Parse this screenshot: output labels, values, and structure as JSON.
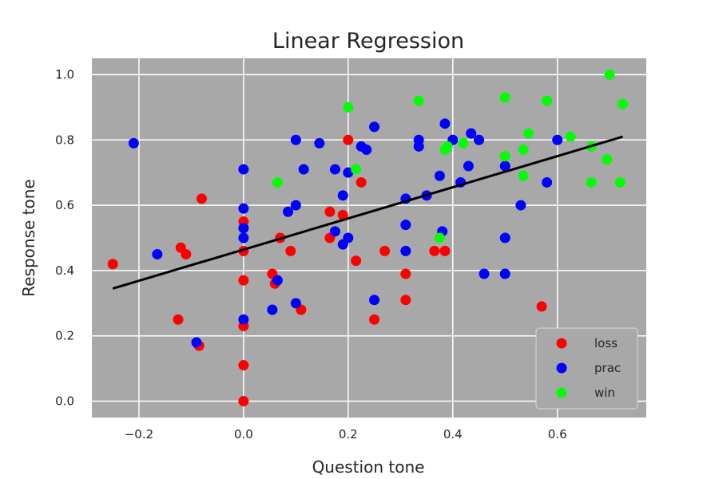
{
  "chart_data": {
    "type": "scatter",
    "title": "Linear Regression",
    "xlabel": "Question tone",
    "ylabel": "Response tone",
    "xlim": [
      -0.29,
      0.77
    ],
    "ylim": [
      -0.05,
      1.05
    ],
    "xticks": [
      -0.2,
      0.0,
      0.2,
      0.4,
      0.6
    ],
    "xtick_labels": [
      "−0.2",
      "0.0",
      "0.2",
      "0.4",
      "0.6"
    ],
    "yticks": [
      0.0,
      0.2,
      0.4,
      0.6,
      0.8,
      1.0
    ],
    "ytick_labels": [
      "0.0",
      "0.2",
      "0.4",
      "0.6",
      "0.8",
      "1.0"
    ],
    "grid": true,
    "background_color": "#a8a8a8",
    "grid_color": "#ffffff",
    "legend_position": "lower-right",
    "series": [
      {
        "name": "loss",
        "color": "#ff0000",
        "points": [
          [
            -0.25,
            0.42
          ],
          [
            -0.12,
            0.47
          ],
          [
            -0.11,
            0.45
          ],
          [
            -0.125,
            0.25
          ],
          [
            -0.08,
            0.62
          ],
          [
            -0.085,
            0.17
          ],
          [
            0.0,
            0.55
          ],
          [
            0.0,
            0.46
          ],
          [
            0.0,
            0.37
          ],
          [
            0.0,
            0.23
          ],
          [
            0.0,
            0.11
          ],
          [
            0.0,
            0.0
          ],
          [
            0.055,
            0.39
          ],
          [
            0.06,
            0.36
          ],
          [
            0.07,
            0.5
          ],
          [
            0.09,
            0.46
          ],
          [
            0.11,
            0.28
          ],
          [
            0.165,
            0.58
          ],
          [
            0.165,
            0.5
          ],
          [
            0.19,
            0.57
          ],
          [
            0.2,
            0.8
          ],
          [
            0.215,
            0.43
          ],
          [
            0.225,
            0.67
          ],
          [
            0.25,
            0.25
          ],
          [
            0.27,
            0.46
          ],
          [
            0.31,
            0.39
          ],
          [
            0.31,
            0.31
          ],
          [
            0.365,
            0.46
          ],
          [
            0.385,
            0.46
          ],
          [
            0.57,
            0.29
          ]
        ]
      },
      {
        "name": "prac",
        "color": "#0000ff",
        "points": [
          [
            -0.21,
            0.79
          ],
          [
            -0.165,
            0.45
          ],
          [
            -0.09,
            0.18
          ],
          [
            0.0,
            0.71
          ],
          [
            0.0,
            0.59
          ],
          [
            0.0,
            0.53
          ],
          [
            0.0,
            0.5
          ],
          [
            0.0,
            0.25
          ],
          [
            0.055,
            0.28
          ],
          [
            0.065,
            0.37
          ],
          [
            0.085,
            0.58
          ],
          [
            0.1,
            0.8
          ],
          [
            0.1,
            0.6
          ],
          [
            0.1,
            0.3
          ],
          [
            0.115,
            0.71
          ],
          [
            0.145,
            0.79
          ],
          [
            0.175,
            0.71
          ],
          [
            0.175,
            0.52
          ],
          [
            0.19,
            0.63
          ],
          [
            0.19,
            0.48
          ],
          [
            0.2,
            0.7
          ],
          [
            0.2,
            0.5
          ],
          [
            0.225,
            0.78
          ],
          [
            0.235,
            0.77
          ],
          [
            0.25,
            0.84
          ],
          [
            0.25,
            0.31
          ],
          [
            0.31,
            0.62
          ],
          [
            0.31,
            0.54
          ],
          [
            0.31,
            0.46
          ],
          [
            0.335,
            0.8
          ],
          [
            0.335,
            0.78
          ],
          [
            0.35,
            0.63
          ],
          [
            0.375,
            0.69
          ],
          [
            0.38,
            0.52
          ],
          [
            0.385,
            0.85
          ],
          [
            0.4,
            0.8
          ],
          [
            0.415,
            0.67
          ],
          [
            0.43,
            0.72
          ],
          [
            0.435,
            0.82
          ],
          [
            0.45,
            0.8
          ],
          [
            0.46,
            0.39
          ],
          [
            0.5,
            0.72
          ],
          [
            0.5,
            0.5
          ],
          [
            0.5,
            0.39
          ],
          [
            0.53,
            0.6
          ],
          [
            0.58,
            0.67
          ],
          [
            0.6,
            0.8
          ]
        ]
      },
      {
        "name": "win",
        "color": "#00ff00",
        "points": [
          [
            0.065,
            0.67
          ],
          [
            0.2,
            0.9
          ],
          [
            0.215,
            0.71
          ],
          [
            0.335,
            0.92
          ],
          [
            0.375,
            0.5
          ],
          [
            0.385,
            0.77
          ],
          [
            0.39,
            0.78
          ],
          [
            0.42,
            0.79
          ],
          [
            0.5,
            0.93
          ],
          [
            0.5,
            0.75
          ],
          [
            0.535,
            0.77
          ],
          [
            0.535,
            0.69
          ],
          [
            0.545,
            0.82
          ],
          [
            0.58,
            0.92
          ],
          [
            0.625,
            0.81
          ],
          [
            0.665,
            0.78
          ],
          [
            0.665,
            0.67
          ],
          [
            0.695,
            0.74
          ],
          [
            0.7,
            1.0
          ],
          [
            0.72,
            0.67
          ],
          [
            0.725,
            0.91
          ]
        ]
      }
    ],
    "regression_line": {
      "color": "#000000",
      "x": [
        -0.25,
        0.725
      ],
      "y": [
        0.345,
        0.81
      ]
    }
  }
}
